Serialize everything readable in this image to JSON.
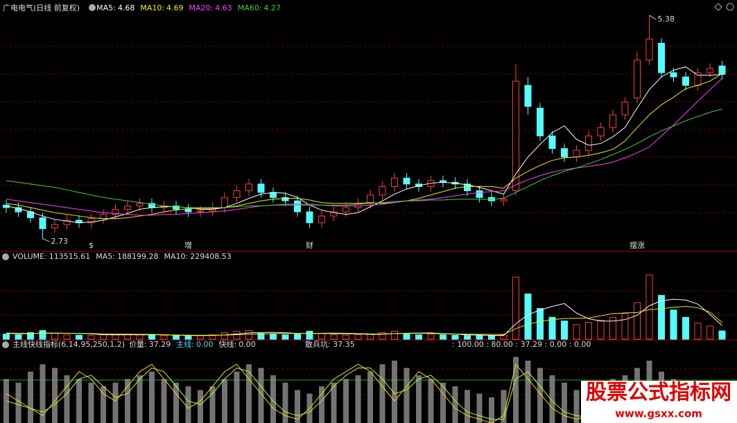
{
  "chart_data": [
    {
      "type": "candlestick",
      "title": "广电电气(日线 前复权)",
      "up_color": "#ff3c3c",
      "down_color": "#54fcfc",
      "ylim": [
        2.59,
        5.48
      ],
      "opens": [
        3.13,
        3.1,
        3.05,
        2.98,
        2.86,
        2.9,
        2.95,
        2.92,
        2.97,
        3.02,
        3.08,
        3.12,
        3.15,
        3.1,
        3.12,
        3.08,
        3.05,
        3.06,
        3.1,
        3.22,
        3.3,
        3.38,
        3.28,
        3.22,
        3.18,
        3.05,
        2.92,
        3.0,
        3.05,
        3.1,
        3.15,
        3.25,
        3.35,
        3.45,
        3.38,
        3.35,
        3.42,
        3.4,
        3.38,
        3.3,
        3.22,
        3.18,
        3.3,
        4.55,
        4.28,
        3.95,
        3.8,
        3.7,
        3.78,
        3.95,
        4.05,
        4.2,
        4.4,
        4.85,
        5.05,
        4.7,
        4.65,
        4.55,
        4.7,
        4.78
      ],
      "highs": [
        3.19,
        3.16,
        3.11,
        3.04,
        2.96,
        3.01,
        3.01,
        3.03,
        3.08,
        3.14,
        3.18,
        3.21,
        3.21,
        3.18,
        3.18,
        3.14,
        3.12,
        3.16,
        3.28,
        3.36,
        3.44,
        3.44,
        3.34,
        3.28,
        3.24,
        3.11,
        3.06,
        3.11,
        3.16,
        3.21,
        3.31,
        3.41,
        3.51,
        3.51,
        3.44,
        3.48,
        3.48,
        3.46,
        3.44,
        3.36,
        3.28,
        3.26,
        4.8,
        4.65,
        4.34,
        4.01,
        3.86,
        3.84,
        4.01,
        4.11,
        4.26,
        4.41,
        4.95,
        5.38,
        5.11,
        4.76,
        4.71,
        4.76,
        4.81,
        4.84
      ],
      "lows": [
        3.04,
        2.99,
        2.92,
        2.73,
        2.8,
        2.84,
        2.86,
        2.86,
        2.91,
        2.96,
        3.02,
        3.06,
        3.04,
        3.04,
        3.02,
        2.99,
        2.99,
        3.0,
        3.04,
        3.16,
        3.24,
        3.22,
        3.16,
        3.12,
        2.99,
        2.86,
        2.86,
        2.94,
        2.99,
        3.04,
        3.09,
        3.19,
        3.29,
        3.32,
        3.29,
        3.29,
        3.34,
        3.32,
        3.24,
        3.16,
        3.12,
        3.12,
        3.24,
        4.2,
        3.89,
        3.74,
        3.64,
        3.64,
        3.72,
        3.89,
        3.99,
        4.14,
        4.34,
        4.79,
        4.64,
        4.59,
        4.49,
        4.49,
        4.64,
        4.62
      ],
      "closes": [
        3.1,
        3.05,
        2.98,
        2.85,
        2.9,
        2.95,
        2.92,
        2.97,
        3.02,
        3.08,
        3.12,
        3.15,
        3.1,
        3.12,
        3.08,
        3.05,
        3.06,
        3.1,
        3.22,
        3.3,
        3.38,
        3.28,
        3.22,
        3.18,
        3.05,
        2.92,
        3.0,
        3.05,
        3.1,
        3.15,
        3.25,
        3.35,
        3.45,
        3.38,
        3.35,
        3.42,
        3.4,
        3.38,
        3.3,
        3.22,
        3.18,
        3.2,
        4.6,
        4.3,
        3.95,
        3.8,
        3.7,
        3.78,
        3.95,
        4.05,
        4.2,
        4.35,
        4.85,
        5.1,
        4.7,
        4.65,
        4.55,
        4.7,
        4.75,
        4.68
      ],
      "series": [
        {
          "name": "MA5:",
          "color": "#ffffff",
          "values": [
            3.12,
            3.09,
            3.05,
            3.0,
            2.96,
            2.94,
            2.92,
            2.93,
            2.95,
            2.99,
            3.03,
            3.08,
            3.1,
            3.11,
            3.11,
            3.1,
            3.08,
            3.08,
            3.1,
            3.15,
            3.21,
            3.26,
            3.28,
            3.27,
            3.22,
            3.13,
            3.07,
            3.04,
            3.02,
            3.04,
            3.11,
            3.18,
            3.26,
            3.32,
            3.36,
            3.39,
            3.4,
            3.39,
            3.37,
            3.34,
            3.3,
            3.26,
            3.5,
            3.7,
            3.85,
            3.99,
            4.07,
            3.91,
            3.84,
            3.86,
            3.94,
            4.05,
            4.28,
            4.5,
            4.65,
            4.73,
            4.77,
            4.67,
            4.67,
            4.68
          ]
        },
        {
          "name": "MA10:",
          "color": "#f0f000",
          "values": [
            3.15,
            3.13,
            3.1,
            3.07,
            3.04,
            3.02,
            3.0,
            2.98,
            2.97,
            2.97,
            2.98,
            3.0,
            3.02,
            3.05,
            3.07,
            3.09,
            3.09,
            3.09,
            3.1,
            3.12,
            3.15,
            3.18,
            3.2,
            3.21,
            3.21,
            3.19,
            3.16,
            3.15,
            3.15,
            3.15,
            3.16,
            3.15,
            3.17,
            3.18,
            3.21,
            3.25,
            3.29,
            3.33,
            3.35,
            3.35,
            3.35,
            3.33,
            3.45,
            3.53,
            3.6,
            3.66,
            3.69,
            3.7,
            3.72,
            3.75,
            3.79,
            3.89,
            4.05,
            4.2,
            4.32,
            4.41,
            4.51,
            4.55,
            4.6,
            4.69
          ]
        },
        {
          "name": "MA20:",
          "color": "#ff40ff",
          "values": [
            3.2,
            3.18,
            3.16,
            3.14,
            3.12,
            3.1,
            3.08,
            3.06,
            3.04,
            3.03,
            3.02,
            3.01,
            3.01,
            3.02,
            3.02,
            3.03,
            3.04,
            3.05,
            3.06,
            3.08,
            3.1,
            3.12,
            3.13,
            3.14,
            3.14,
            3.14,
            3.13,
            3.12,
            3.12,
            3.12,
            3.13,
            3.14,
            3.16,
            3.18,
            3.19,
            3.2,
            3.22,
            3.24,
            3.26,
            3.28,
            3.29,
            3.3,
            3.37,
            3.43,
            3.48,
            3.52,
            3.55,
            3.57,
            3.59,
            3.61,
            3.64,
            3.69,
            3.75,
            3.82,
            3.95,
            4.08,
            4.22,
            4.36,
            4.5,
            4.63
          ]
        },
        {
          "name": "MA60:",
          "color": "#40d040",
          "values": [
            3.42,
            3.4,
            3.38,
            3.36,
            3.34,
            3.31,
            3.28,
            3.25,
            3.22,
            3.2,
            3.18,
            3.16,
            3.14,
            3.12,
            3.11,
            3.1,
            3.1,
            3.1,
            3.1,
            3.11,
            3.12,
            3.12,
            3.13,
            3.13,
            3.13,
            3.13,
            3.13,
            3.13,
            3.13,
            3.14,
            3.15,
            3.16,
            3.17,
            3.18,
            3.18,
            3.19,
            3.19,
            3.2,
            3.2,
            3.2,
            3.2,
            3.21,
            3.28,
            3.35,
            3.42,
            3.48,
            3.53,
            3.57,
            3.62,
            3.67,
            3.73,
            3.79,
            3.86,
            3.94,
            4.01,
            4.07,
            4.13,
            4.18,
            4.23,
            4.27
          ]
        }
      ],
      "annotations": [
        {
          "label": "2.73",
          "index": 3
        },
        {
          "label": "5.38",
          "index": 53
        }
      ],
      "events": [
        {
          "label": "$",
          "index": 7
        },
        {
          "label": "增",
          "index": 15
        },
        {
          "label": "财",
          "index": 25
        },
        {
          "label": "摆涨",
          "index": 52
        }
      ]
    },
    {
      "type": "bar",
      "title": "VOLUME:",
      "ylim": [
        0,
        1060000
      ],
      "values": [
        70000,
        60000,
        90000,
        120000,
        80000,
        60000,
        55000,
        50000,
        60000,
        70000,
        65000,
        60000,
        55000,
        50000,
        50000,
        45000,
        50000,
        60000,
        90000,
        110000,
        120000,
        80000,
        70000,
        60000,
        70000,
        110000,
        80000,
        60000,
        55000,
        60000,
        70000,
        90000,
        110000,
        80000,
        60000,
        70000,
        60000,
        55000,
        50000,
        50000,
        45000,
        60000,
        850000,
        620000,
        420000,
        300000,
        250000,
        200000,
        230000,
        260000,
        300000,
        350000,
        500000,
        880000,
        600000,
        400000,
        300000,
        220000,
        180000,
        113515.61
      ],
      "series": [
        {
          "name": "MA5:",
          "color": "#ffffff",
          "values": [
            80000,
            75000,
            78000,
            84000,
            84000,
            82000,
            81000,
            73000,
            61000,
            59000,
            60000,
            60000,
            60000,
            60000,
            56000,
            52000,
            50000,
            51000,
            59000,
            71000,
            86000,
            92000,
            94000,
            88000,
            80000,
            78000,
            78000,
            76000,
            75000,
            73000,
            65000,
            67000,
            77000,
            82000,
            84000,
            86000,
            78000,
            71000,
            59000,
            57000,
            52000,
            52000,
            212000,
            335000,
            399000,
            448000,
            488000,
            358000,
            280000,
            248000,
            248000,
            268000,
            328000,
            458000,
            526000,
            546000,
            536000,
            480000,
            340000,
            188199.28
          ]
        },
        {
          "name": "MA10:",
          "color": "#f0f000",
          "values": [
            85000,
            82000,
            80000,
            80000,
            80000,
            80000,
            79000,
            78000,
            72000,
            70000,
            70000,
            68000,
            66000,
            62000,
            58000,
            56000,
            55000,
            55000,
            57000,
            62000,
            68000,
            72000,
            76000,
            78000,
            79000,
            80000,
            82000,
            84000,
            82000,
            78000,
            72000,
            72000,
            77000,
            79000,
            79000,
            79000,
            74000,
            71000,
            70000,
            68000,
            66000,
            66000,
            145000,
            205000,
            243000,
            267000,
            283000,
            286000,
            290000,
            320000,
            350000,
            360000,
            365000,
            405000,
            417000,
            437000,
            450000,
            430000,
            370000,
            229408.53
          ]
        }
      ]
    },
    {
      "type": "indicator",
      "title": "主线快线指标(6,14,95,250,1,2)",
      "ylim": [
        0,
        100
      ],
      "series": [
        {
          "name": "价量:",
          "color": "#9a9a9a",
          "values": [
            60,
            55,
            70,
            80,
            75,
            65,
            60,
            55,
            50,
            55,
            60,
            65,
            70,
            60,
            55,
            50,
            45,
            50,
            60,
            70,
            80,
            75,
            65,
            55,
            45,
            40,
            50,
            55,
            60,
            65,
            70,
            80,
            85,
            75,
            65,
            60,
            55,
            50,
            45,
            40,
            35,
            45,
            90,
            85,
            75,
            65,
            55,
            45,
            50,
            55,
            60,
            65,
            75,
            85,
            70,
            60,
            55,
            50,
            45,
            37.29
          ]
        },
        {
          "name": "主线:",
          "color": "#ffd400",
          "legend_value": "0.00",
          "values": [
            40,
            30,
            20,
            10,
            30,
            50,
            70,
            60,
            40,
            30,
            50,
            70,
            80,
            60,
            40,
            20,
            30,
            50,
            70,
            80,
            60,
            40,
            20,
            10,
            5,
            20,
            40,
            60,
            70,
            80,
            70,
            50,
            30,
            50,
            70,
            60,
            40,
            20,
            10,
            5,
            0,
            10,
            80,
            60,
            40,
            20,
            10,
            5,
            10,
            20,
            30,
            20,
            10,
            5,
            40,
            30,
            20,
            10,
            5,
            0
          ]
        },
        {
          "name": "快线:",
          "color": "#a8ff40",
          "legend_value": "0.00",
          "values": [
            30,
            25,
            20,
            15,
            25,
            40,
            60,
            65,
            50,
            35,
            40,
            60,
            75,
            70,
            50,
            30,
            25,
            40,
            60,
            75,
            70,
            50,
            30,
            15,
            10,
            15,
            30,
            50,
            65,
            75,
            75,
            60,
            40,
            45,
            60,
            65,
            50,
            30,
            15,
            10,
            5,
            5,
            60,
            70,
            50,
            30,
            15,
            10,
            8,
            15,
            25,
            25,
            15,
            8,
            25,
            35,
            25,
            15,
            8,
            0
          ]
        }
      ],
      "pit_text": "散兵坑: 37.35",
      "levels_text": ": 100.00 : 80.00 : 37.29 : 0.00 : 0.00"
    }
  ],
  "watermark": {
    "title": "股票公式指标网",
    "url": "www.gsxx.com"
  }
}
